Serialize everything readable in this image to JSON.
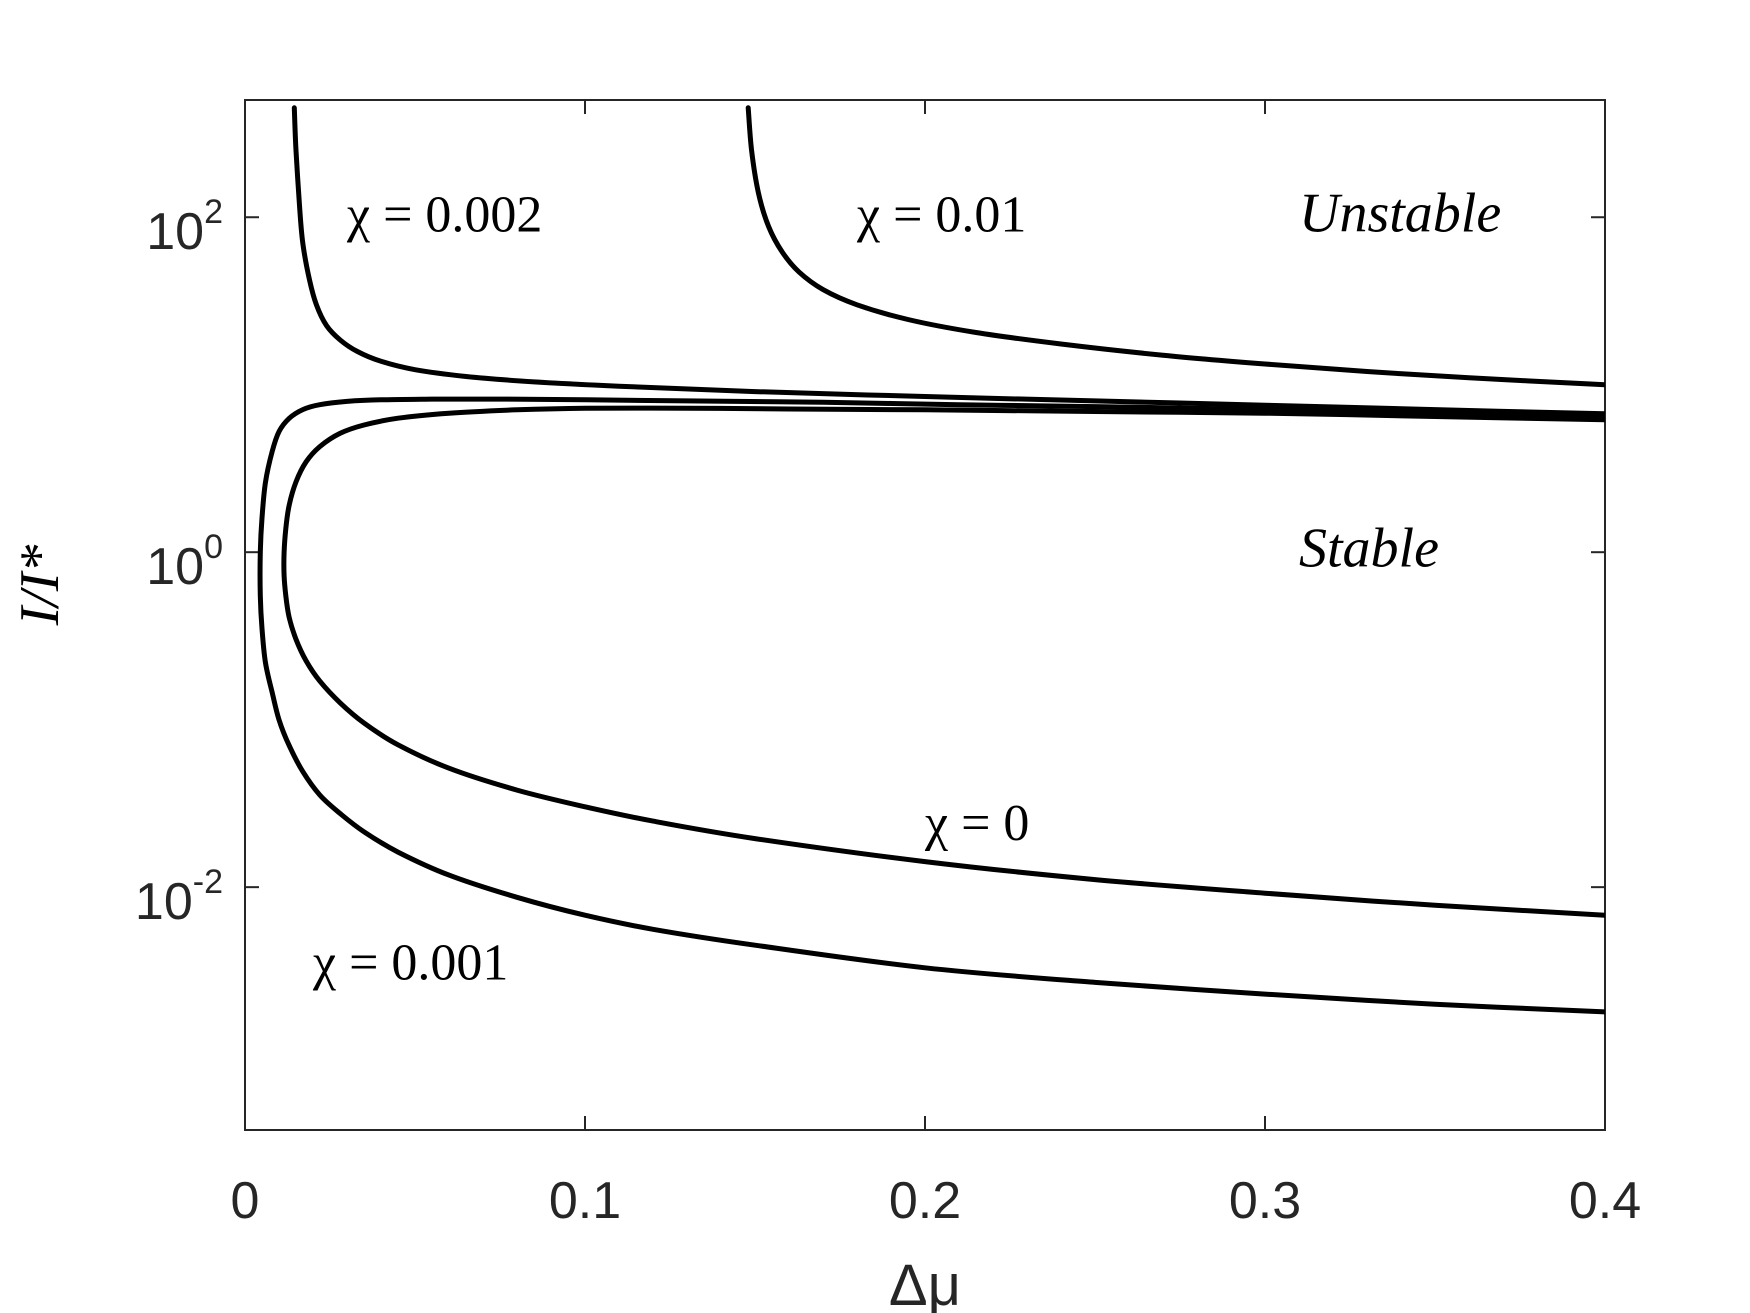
{
  "chart_data": {
    "type": "line",
    "xlabel": "Δμ",
    "ylabel": "I/I*",
    "xlim": [
      0,
      0.4
    ],
    "ylim_log10": [
      -3.45,
      2.7
    ],
    "yscale": "log",
    "grid": false,
    "x_ticks": [
      {
        "value": 0,
        "label": "0"
      },
      {
        "value": 0.1,
        "label": "0.1"
      },
      {
        "value": 0.2,
        "label": "0.2"
      },
      {
        "value": 0.3,
        "label": "0.3"
      },
      {
        "value": 0.4,
        "label": "0.4"
      }
    ],
    "y_ticks": [
      {
        "value": 0.01,
        "base": "10",
        "exp": "-2"
      },
      {
        "value": 1,
        "base": "10",
        "exp": "0"
      },
      {
        "value": 100,
        "base": "10",
        "exp": "2"
      }
    ],
    "series": [
      {
        "name": "χ = 0",
        "label_text": "χ = 0",
        "label_x": 0.2,
        "label_y": 0.0245,
        "branches": [
          {
            "x": [
              0.4,
              0.35,
              0.3,
              0.25,
              0.2,
              0.15,
              0.12,
              0.1,
              0.08,
              0.06,
              0.045,
              0.035,
              0.028,
              0.022,
              0.018,
              0.015,
              0.013,
              0.012,
              0.0115,
              0.0115,
              0.012,
              0.013,
              0.015,
              0.018,
              0.022,
              0.028,
              0.035,
              0.045,
              0.06,
              0.08,
              0.1,
              0.13,
              0.16,
              0.2,
              0.25,
              0.3,
              0.35,
              0.4
            ],
            "y": [
              0.0068,
              0.0078,
              0.0092,
              0.0111,
              0.0142,
              0.0195,
              0.0248,
              0.0302,
              0.038,
              0.0513,
              0.0708,
              0.0955,
              0.126,
              0.17,
              0.224,
              0.302,
              0.407,
              0.55,
              0.724,
              1.0,
              1.38,
              1.91,
              2.63,
              3.47,
              4.27,
              5.13,
              5.75,
              6.31,
              6.76,
              7.08,
              7.24,
              7.24,
              7.16,
              7.08,
              6.92,
              6.76,
              6.46,
              6.17
            ]
          }
        ]
      },
      {
        "name": "χ = 0.001",
        "label_text": "χ = 0.001",
        "label_x": 0.02,
        "label_y": 0.0036,
        "branches": [
          {
            "x": [
              0.4,
              0.35,
              0.3,
              0.25,
              0.2,
              0.15,
              0.12,
              0.1,
              0.08,
              0.06,
              0.045,
              0.035,
              0.028,
              0.022,
              0.017,
              0.013,
              0.01,
              0.008,
              0.006,
              0.005,
              0.0045,
              0.0045,
              0.005,
              0.006,
              0.008,
              0.01,
              0.013,
              0.017,
              0.022,
              0.03,
              0.04,
              0.055,
              0.075,
              0.1,
              0.13,
              0.17,
              0.21,
              0.25,
              0.3,
              0.35,
              0.4
            ],
            "y": [
              0.0018,
              0.002,
              0.0023,
              0.0027,
              0.0033,
              0.0045,
              0.0056,
              0.0068,
              0.0087,
              0.0118,
              0.0162,
              0.0214,
              0.0275,
              0.0355,
              0.049,
              0.07,
              0.1,
              0.145,
              0.22,
              0.35,
              0.55,
              1.0,
              1.6,
              2.6,
              4.0,
              5.25,
              6.3,
              7.1,
              7.6,
              7.95,
              8.13,
              8.2,
              8.2,
              8.13,
              8.0,
              7.85,
              7.6,
              7.4,
              7.1,
              6.75,
              6.3
            ]
          }
        ]
      },
      {
        "name": "χ = 0.002",
        "label_text": "χ = 0.002",
        "label_x": 0.03,
        "label_y": 105,
        "branches": [
          {
            "x": [
              0.0145,
              0.015,
              0.016,
              0.017,
              0.019,
              0.021,
              0.024,
              0.028,
              0.033,
              0.04,
              0.05,
              0.065,
              0.085,
              0.11,
              0.15,
              0.2,
              0.25,
              0.3,
              0.35,
              0.4
            ],
            "y": [
              450,
              250,
              120,
              70,
              42,
              30,
              22.5,
              18.5,
              15.8,
              13.8,
              12.3,
              11.2,
              10.4,
              9.8,
              9.1,
              8.5,
              8.0,
              7.55,
              7.1,
              6.7
            ]
          }
        ]
      },
      {
        "name": "χ = 0.01",
        "label_text": "χ = 0.01",
        "label_x": 0.18,
        "label_y": 105,
        "branches": [
          {
            "x": [
              0.148,
              0.149,
              0.151,
              0.154,
              0.158,
              0.163,
              0.17,
              0.18,
              0.195,
              0.215,
              0.24,
              0.27,
              0.3,
              0.33,
              0.36,
              0.4
            ],
            "y": [
              450,
              250,
              140,
              88,
              62,
              47,
              37,
              30,
              24.5,
              20.5,
              17.5,
              15.0,
              13.3,
              12.0,
              11.0,
              10.0
            ]
          }
        ]
      }
    ],
    "region_labels": [
      {
        "text": "Unstable",
        "x": 0.31,
        "y": 105
      },
      {
        "text": "Stable",
        "x": 0.31,
        "y": 1.05
      }
    ]
  }
}
